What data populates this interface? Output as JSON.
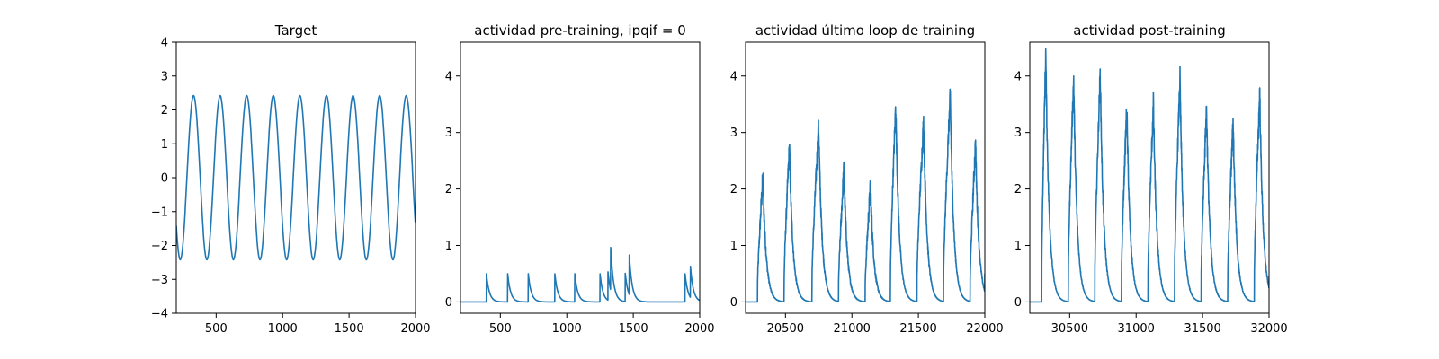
{
  "chart_data": [
    {
      "type": "line",
      "title": "Target",
      "color": "#1f77b4",
      "xlim": [
        200,
        2000
      ],
      "ylim": [
        -4,
        4
      ],
      "xticks": [
        500,
        1000,
        1500,
        2000
      ],
      "yticks": [
        -4,
        -3,
        -2,
        -1,
        0,
        1,
        2,
        3,
        4
      ],
      "ytick_labels": [
        "−4",
        "−3",
        "−2",
        "−1",
        "0",
        "1",
        "2",
        "3",
        "4"
      ],
      "grid": false,
      "series": [
        {
          "kind": "sine",
          "amplitude": 2.42,
          "period": 200,
          "peaks_at": [
            330,
            530,
            730,
            930,
            1130,
            1330,
            1530,
            1730,
            1930
          ],
          "end_value": -0.9
        }
      ]
    },
    {
      "type": "line",
      "title": "actividad pre-training, ipqif = 0",
      "color": "#1f77b4",
      "xlim": [
        200,
        2000
      ],
      "ylim": [
        -0.2,
        4.6
      ],
      "xticks": [
        500,
        1000,
        1500,
        2000
      ],
      "yticks": [
        0,
        1,
        2,
        3,
        4
      ],
      "grid": false,
      "series": [
        {
          "kind": "decay_pulses",
          "baseline": 0,
          "pulses": [
            {
              "start": 395,
              "peak": 0.5
            },
            {
              "start": 555,
              "peak": 0.5
            },
            {
              "start": 710,
              "peak": 0.5
            },
            {
              "start": 910,
              "peak": 0.5
            },
            {
              "start": 1060,
              "peak": 0.5
            },
            {
              "start": 1250,
              "peak": 0.5
            },
            {
              "start": 1310,
              "peak": 0.5
            },
            {
              "start": 1330,
              "peak": 0.75
            },
            {
              "start": 1440,
              "peak": 0.5
            },
            {
              "start": 1470,
              "peak": 0.7
            },
            {
              "start": 1890,
              "peak": 0.5
            },
            {
              "start": 1930,
              "peak": 0.55
            }
          ]
        }
      ]
    },
    {
      "type": "line",
      "title": "actividad último loop de training",
      "color": "#1f77b4",
      "xlim": [
        20200,
        22000
      ],
      "ylim": [
        -0.2,
        4.6
      ],
      "xticks": [
        20500,
        21000,
        21500,
        22000
      ],
      "yticks": [
        0,
        1,
        2,
        3,
        4
      ],
      "grid": false,
      "series": [
        {
          "kind": "noisy_bursts",
          "baseline": 0,
          "end_value": 0.5,
          "bursts": [
            {
              "start": 20290,
              "peak_at": 20330,
              "peak": 2.2
            },
            {
              "start": 20490,
              "peak_at": 20530,
              "peak": 2.75
            },
            {
              "start": 20700,
              "peak_at": 20750,
              "peak": 3.1
            },
            {
              "start": 20900,
              "peak_at": 20940,
              "peak": 2.35
            },
            {
              "start": 21100,
              "peak_at": 21140,
              "peak": 2.05
            },
            {
              "start": 21290,
              "peak_at": 21330,
              "peak": 3.5
            },
            {
              "start": 21490,
              "peak_at": 21540,
              "peak": 3.2
            },
            {
              "start": 21690,
              "peak_at": 21740,
              "peak": 3.65
            },
            {
              "start": 21890,
              "peak_at": 21930,
              "peak": 2.8
            }
          ]
        }
      ]
    },
    {
      "type": "line",
      "title": "actividad post-training",
      "color": "#1f77b4",
      "xlim": [
        30200,
        32000
      ],
      "ylim": [
        -0.2,
        4.6
      ],
      "xticks": [
        30500,
        31000,
        31500,
        32000
      ],
      "yticks": [
        0,
        1,
        2,
        3,
        4
      ],
      "grid": false,
      "series": [
        {
          "kind": "noisy_bursts",
          "baseline": 0,
          "end_value": 0.45,
          "bursts": [
            {
              "start": 30290,
              "peak_at": 30320,
              "peak": 4.4
            },
            {
              "start": 30490,
              "peak_at": 30530,
              "peak": 3.95
            },
            {
              "start": 30690,
              "peak_at": 30730,
              "peak": 4.05
            },
            {
              "start": 30890,
              "peak_at": 30930,
              "peak": 3.45
            },
            {
              "start": 31090,
              "peak_at": 31130,
              "peak": 3.5
            },
            {
              "start": 31290,
              "peak_at": 31330,
              "peak": 3.95
            },
            {
              "start": 31490,
              "peak_at": 31530,
              "peak": 3.45
            },
            {
              "start": 31690,
              "peak_at": 31730,
              "peak": 3.2
            },
            {
              "start": 31890,
              "peak_at": 31930,
              "peak": 3.7
            }
          ]
        }
      ]
    }
  ]
}
